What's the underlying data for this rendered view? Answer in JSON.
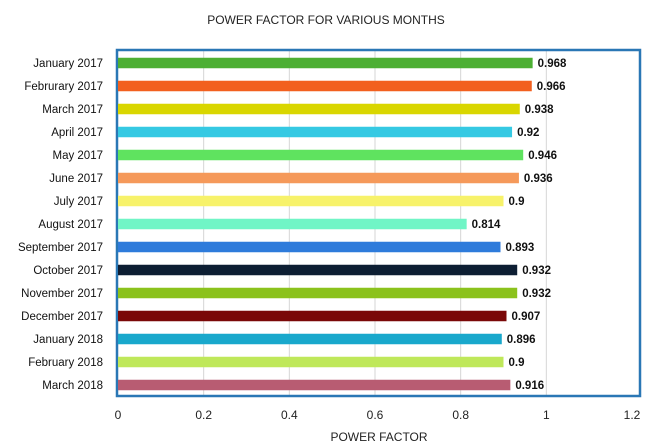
{
  "chart_data": {
    "type": "bar",
    "orientation": "horizontal",
    "title": "POWER FACTOR FOR VARIOUS MONTHS",
    "xlabel": "POWER FACTOR",
    "ylabel": "",
    "xlim": [
      0,
      1.2
    ],
    "x_ticks": [
      "0",
      "0.2",
      "0.4",
      "0.6",
      "0.8",
      "1",
      "1.2"
    ],
    "grid": "vertical",
    "legend": "none",
    "categories": [
      "January 2017",
      "Februrary 2017",
      "March 2017",
      "April 2017",
      "May 2017",
      "June 2017",
      "July 2017",
      "August 2017",
      "September 2017",
      "October 2017",
      "November 2017",
      "December 2017",
      "January 2018",
      "February 2018",
      "March 2018"
    ],
    "values": [
      0.968,
      0.966,
      0.938,
      0.92,
      0.946,
      0.936,
      0.9,
      0.814,
      0.893,
      0.932,
      0.932,
      0.907,
      0.896,
      0.9,
      0.916
    ],
    "value_labels": [
      "0.968",
      "0.966",
      "0.938",
      "0.92",
      "0.946",
      "0.936",
      "0.9",
      "0.814",
      "0.893",
      "0.932",
      "0.932",
      "0.907",
      "0.896",
      "0.9",
      "0.916"
    ],
    "colors": [
      "#4caf33",
      "#f2601f",
      "#d9d600",
      "#35c9e3",
      "#5fe35f",
      "#f5995a",
      "#f7f26a",
      "#70f5c6",
      "#2e7bdb",
      "#0d1e33",
      "#8bc21c",
      "#7a0808",
      "#19a8cc",
      "#bfe85a",
      "#b85c72"
    ],
    "frame_color": "#2a77b5"
  }
}
